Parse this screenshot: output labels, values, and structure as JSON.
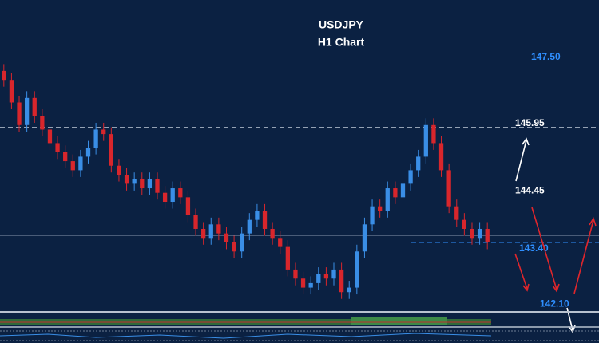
{
  "chart_data": {
    "type": "candlestick",
    "title": "USDJPY",
    "subtitle": "H1 Chart",
    "ylim": [
      141.88,
      148.77
    ],
    "up_color": "#3a8ee6",
    "down_color": "#d8262c",
    "levels": [
      {
        "value": 147.5,
        "label": "147.50",
        "color": "#2f8fff",
        "style": "none"
      },
      {
        "value": 145.95,
        "label": "145.95",
        "color": "#ffffff",
        "style": "dashed"
      },
      {
        "value": 144.45,
        "label": "144.45",
        "color": "#ffffff",
        "style": "dashed"
      },
      {
        "value": 143.4,
        "label": "143.40",
        "color": "#2f8fff",
        "style": "partial"
      },
      {
        "value": 142.1,
        "label": "142.10",
        "color": "#2f8fff",
        "style": "none"
      }
    ],
    "candles": [
      [
        147.2,
        147.35,
        146.85,
        147.0
      ],
      [
        147.0,
        147.15,
        146.35,
        146.5
      ],
      [
        146.5,
        146.65,
        145.85,
        146.0
      ],
      [
        146.0,
        146.75,
        145.85,
        146.6
      ],
      [
        146.6,
        146.75,
        146.05,
        146.2
      ],
      [
        146.2,
        146.35,
        145.75,
        145.9
      ],
      [
        145.9,
        146.05,
        145.45,
        145.6
      ],
      [
        145.6,
        145.75,
        145.25,
        145.4
      ],
      [
        145.4,
        145.55,
        145.05,
        145.2
      ],
      [
        145.2,
        145.35,
        144.85,
        145.0
      ],
      [
        145.0,
        145.45,
        144.85,
        145.3
      ],
      [
        145.3,
        145.65,
        145.15,
        145.5
      ],
      [
        145.5,
        146.05,
        145.35,
        145.9
      ],
      [
        145.9,
        146.05,
        145.65,
        145.8
      ],
      [
        145.8,
        145.95,
        144.95,
        145.1
      ],
      [
        145.1,
        145.25,
        144.75,
        144.9
      ],
      [
        144.9,
        145.05,
        144.55,
        144.7
      ],
      [
        144.7,
        144.95,
        144.55,
        144.8
      ],
      [
        144.8,
        144.95,
        144.45,
        144.6
      ],
      [
        144.6,
        144.95,
        144.45,
        144.8
      ],
      [
        144.8,
        144.95,
        144.35,
        144.5
      ],
      [
        144.5,
        144.65,
        144.15,
        144.3
      ],
      [
        144.3,
        144.75,
        144.15,
        144.6
      ],
      [
        144.6,
        144.75,
        144.25,
        144.4
      ],
      [
        144.4,
        144.55,
        143.85,
        144.0
      ],
      [
        144.0,
        144.15,
        143.55,
        143.7
      ],
      [
        143.7,
        143.85,
        143.35,
        143.5
      ],
      [
        143.5,
        143.95,
        143.35,
        143.8
      ],
      [
        143.8,
        143.95,
        143.45,
        143.6
      ],
      [
        143.6,
        143.75,
        143.25,
        143.4
      ],
      [
        143.4,
        143.55,
        143.05,
        143.2
      ],
      [
        143.2,
        143.75,
        143.05,
        143.6
      ],
      [
        143.6,
        144.05,
        143.45,
        143.9
      ],
      [
        143.9,
        144.25,
        143.75,
        144.1
      ],
      [
        144.1,
        144.25,
        143.55,
        143.7
      ],
      [
        143.7,
        143.85,
        143.35,
        143.5
      ],
      [
        143.5,
        143.65,
        143.15,
        143.3
      ],
      [
        143.3,
        143.45,
        142.65,
        142.8
      ],
      [
        142.8,
        142.95,
        142.45,
        142.6
      ],
      [
        142.6,
        142.75,
        142.25,
        142.4
      ],
      [
        142.4,
        142.65,
        142.25,
        142.5
      ],
      [
        142.5,
        142.85,
        142.35,
        142.7
      ],
      [
        142.7,
        142.85,
        142.45,
        142.6
      ],
      [
        142.6,
        142.95,
        142.45,
        142.8
      ],
      [
        142.8,
        142.95,
        142.15,
        142.3
      ],
      [
        142.3,
        142.55,
        142.15,
        142.4
      ],
      [
        142.4,
        143.35,
        142.25,
        143.2
      ],
      [
        143.2,
        143.95,
        143.05,
        143.8
      ],
      [
        143.8,
        144.35,
        143.65,
        144.2
      ],
      [
        144.2,
        144.35,
        143.95,
        144.1
      ],
      [
        144.1,
        144.75,
        143.95,
        144.6
      ],
      [
        144.6,
        144.75,
        144.25,
        144.4
      ],
      [
        144.4,
        144.85,
        144.25,
        144.7
      ],
      [
        144.7,
        145.15,
        144.55,
        145.0
      ],
      [
        145.0,
        145.45,
        144.85,
        145.3
      ],
      [
        145.3,
        146.15,
        145.15,
        146.0
      ],
      [
        146.0,
        146.15,
        145.45,
        145.6
      ],
      [
        145.6,
        145.75,
        144.85,
        145.0
      ],
      [
        145.0,
        145.15,
        144.05,
        144.2
      ],
      [
        144.2,
        144.35,
        143.75,
        143.9
      ],
      [
        143.9,
        144.05,
        143.55,
        143.7
      ],
      [
        143.7,
        143.85,
        143.35,
        143.5
      ],
      [
        143.5,
        143.85,
        143.35,
        143.7
      ],
      [
        143.7,
        143.85,
        143.25,
        143.4
      ]
    ]
  }
}
